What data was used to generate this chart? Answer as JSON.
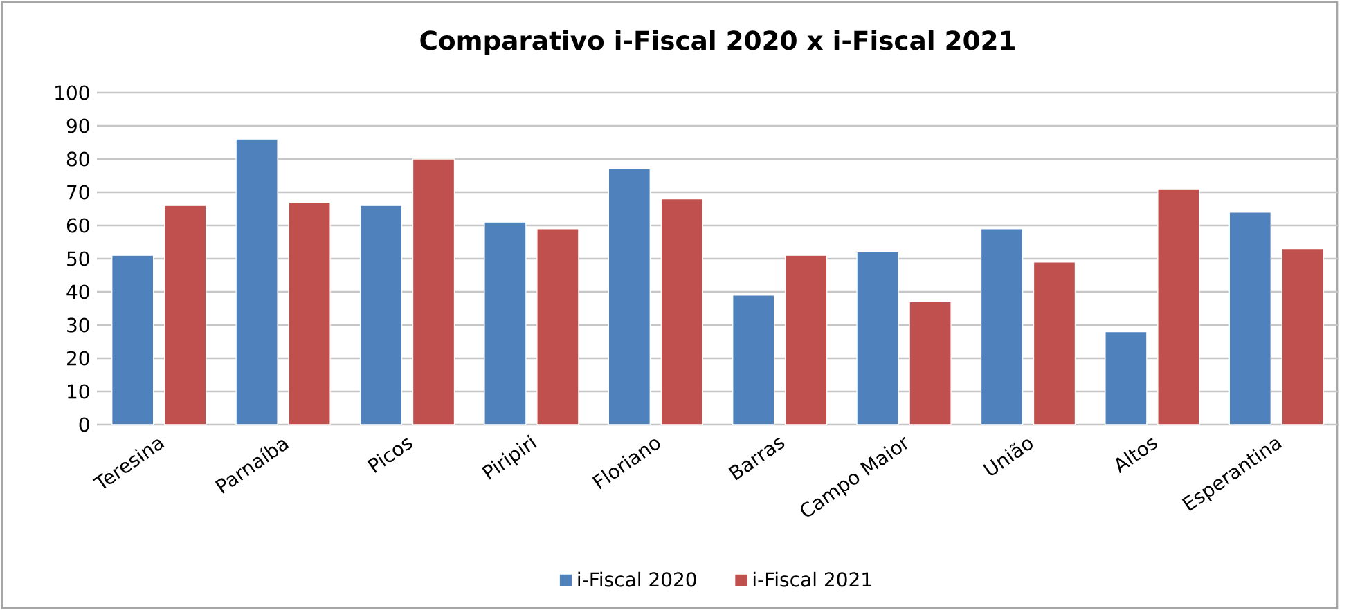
{
  "chart_data": {
    "type": "bar",
    "title": "Comparativo i-Fiscal 2020 x i-Fiscal 2021",
    "categories": [
      "Teresina",
      "Parnaíba",
      "Picos",
      "Piripiri",
      "Floriano",
      "Barras",
      "Campo Maior",
      "União",
      "Altos",
      "Esperantina"
    ],
    "series": [
      {
        "name": "i-Fiscal 2020",
        "color": "#4f81bd",
        "values": [
          51,
          86,
          66,
          61,
          77,
          39,
          52,
          59,
          28,
          64
        ]
      },
      {
        "name": "i-Fiscal 2021",
        "color": "#c0504d",
        "values": [
          66,
          67,
          80,
          59,
          68,
          51,
          37,
          49,
          71,
          53
        ]
      }
    ],
    "ylim": [
      0,
      100
    ],
    "yticks": [
      0,
      10,
      20,
      30,
      40,
      50,
      60,
      70,
      80,
      90,
      100
    ],
    "grid": "y",
    "legend": "bottom"
  }
}
